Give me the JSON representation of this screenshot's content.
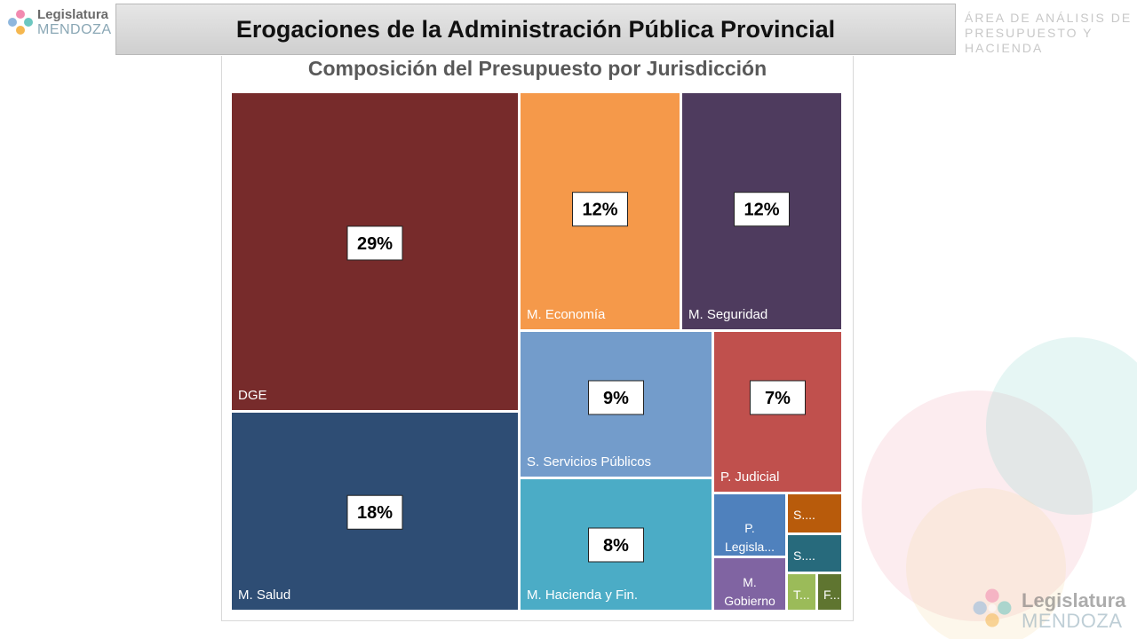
{
  "header": {
    "title": "Erogaciones de la Administración Pública Provincial",
    "area_label": "ÁREA DE ANÁLISIS DE PRESUPUESTO Y HACIENDA",
    "logo_line1": "Legislatura",
    "logo_line2": "MENDOZA"
  },
  "chart_data": {
    "type": "treemap",
    "title": "Composición del Presupuesto por Jurisdicción",
    "items": [
      {
        "label": "DGE",
        "pct_label": "29%",
        "color": "#772b2b"
      },
      {
        "label": "M. Salud",
        "pct_label": "18%",
        "color": "#2e4d74"
      },
      {
        "label": "M. Economía",
        "pct_label": "12%",
        "color": "#f5994a"
      },
      {
        "label": "M. Seguridad",
        "pct_label": "12%",
        "color": "#4e3b5e"
      },
      {
        "label": "S. Servicios Públicos",
        "pct_label": "9%",
        "color": "#739ccb"
      },
      {
        "label": "M. Hacienda y Fin.",
        "pct_label": "8%",
        "color": "#4bacc6"
      },
      {
        "label": "P. Judicial",
        "pct_label": "7%",
        "color": "#c0504d"
      },
      {
        "label": "P. Legisla...",
        "pct_label": "",
        "color": "#4f81bd"
      },
      {
        "label": "M. Gobierno",
        "pct_label": "",
        "color": "#8064a2"
      },
      {
        "label": "S....",
        "pct_label": "",
        "color": "#b85b0b"
      },
      {
        "label": "S....",
        "pct_label": "",
        "color": "#276a7c"
      },
      {
        "label": "T...",
        "pct_label": "",
        "color": "#9bbb59"
      },
      {
        "label": "F...",
        "pct_label": "",
        "color": "#5f7530"
      }
    ]
  }
}
